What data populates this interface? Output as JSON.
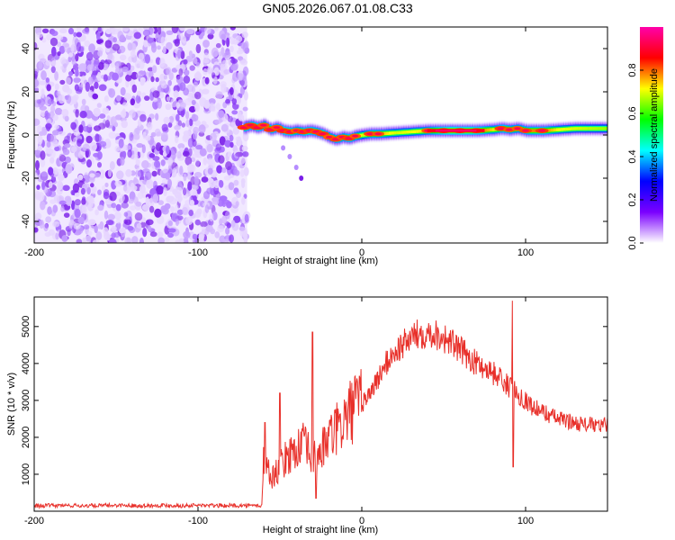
{
  "title": "GN05.2026.067.01.08.C33",
  "chart_data": [
    {
      "type": "heatmap",
      "panel": "spectrogram",
      "xlabel": "Height of straight line (km)",
      "ylabel": "Frequency (Hz)",
      "xlim": [
        -200,
        150
      ],
      "ylim": [
        -50,
        50
      ],
      "x_ticks": [
        -200,
        -100,
        0,
        100
      ],
      "y_ticks": [
        -40,
        -20,
        0,
        20,
        40
      ],
      "noise_region_x": [
        -200,
        -70
      ],
      "ridge": {
        "x": [
          -72,
          -68,
          -64,
          -60,
          -56,
          -52,
          -48,
          -44,
          -40,
          -36,
          -32,
          -28,
          -24,
          -20,
          -16,
          -12,
          -8,
          -4,
          0,
          5,
          10,
          20,
          30,
          40,
          50,
          60,
          70,
          80,
          85,
          90,
          95,
          100,
          110,
          120,
          130,
          140,
          150
        ],
        "y": [
          3.5,
          4.5,
          3.5,
          4.5,
          2.5,
          3.5,
          2.0,
          1.5,
          2.0,
          1.5,
          2.0,
          1.5,
          0.5,
          -1.0,
          -2.0,
          -1.0,
          -1.5,
          -0.5,
          0.0,
          0.5,
          0.5,
          1.0,
          1.5,
          2.0,
          2.0,
          2.0,
          2.0,
          2.5,
          3.0,
          2.5,
          3.0,
          2.0,
          2.0,
          2.5,
          3.0,
          3.0,
          3.0
        ],
        "amplitude": [
          0.85,
          0.85,
          0.9,
          0.75,
          0.85,
          0.75,
          0.9,
          0.85,
          0.7,
          0.85,
          0.85,
          0.8,
          0.85,
          0.7,
          0.8,
          0.75,
          0.85,
          0.7,
          0.55,
          0.8,
          0.75,
          0.55,
          0.6,
          0.7,
          0.95,
          0.95,
          0.9,
          0.65,
          0.85,
          0.75,
          0.7,
          0.8,
          0.85,
          0.6,
          0.55,
          0.5,
          0.45
        ]
      },
      "spur": {
        "x": [
          -48,
          -44,
          -40,
          -37
        ],
        "y": [
          -6,
          -10,
          -15,
          -20
        ]
      },
      "colorbar": {
        "label": "Normalized spectral amplitude",
        "range": [
          0,
          1
        ],
        "ticks": [
          0.0,
          0.2,
          0.4,
          0.6,
          0.8
        ],
        "tick_labels": [
          "0.0",
          "0.2",
          "0.4",
          "0.6",
          "0.8"
        ],
        "colormap": [
          "#ffffff",
          "#7b00ff",
          "#0000ff",
          "#00ffff",
          "#00ff00",
          "#ffff00",
          "#ff0000",
          "#ff00aa"
        ]
      }
    },
    {
      "type": "line",
      "panel": "snr",
      "xlabel": "Height of straight line (km)",
      "ylabel": "SNR (10 * v/v)",
      "xlim": [
        -200,
        150
      ],
      "ylim": [
        0,
        5800
      ],
      "x_ticks": [
        -200,
        -100,
        0,
        100
      ],
      "y_ticks": [
        1000,
        2000,
        3000,
        4000,
        5000
      ],
      "color": "#e8302a",
      "series": [
        {
          "name": "SNR",
          "x": [
            -200,
            -190,
            -180,
            -170,
            -160,
            -150,
            -140,
            -130,
            -120,
            -110,
            -100,
            -90,
            -80,
            -70,
            -61,
            -60,
            -55,
            -50,
            -45,
            -40,
            -35,
            -30,
            -25,
            -20,
            -15,
            -10,
            -5,
            0,
            5,
            10,
            15,
            20,
            25,
            30,
            35,
            40,
            45,
            50,
            55,
            60,
            65,
            70,
            75,
            80,
            85,
            90,
            93,
            95,
            100,
            105,
            110,
            115,
            120,
            125,
            130,
            135,
            140,
            145,
            150
          ],
          "y": [
            150,
            150,
            155,
            150,
            150,
            160,
            155,
            150,
            160,
            150,
            160,
            150,
            155,
            150,
            150,
            1400,
            900,
            1200,
            1500,
            1700,
            1800,
            1400,
            1600,
            2000,
            2200,
            2500,
            2800,
            2900,
            3200,
            3600,
            4000,
            4300,
            4500,
            4700,
            4800,
            4850,
            4800,
            4700,
            4550,
            4350,
            4200,
            4000,
            3900,
            3750,
            3600,
            3350,
            3300,
            3200,
            3000,
            2800,
            2700,
            2600,
            2500,
            2450,
            2400,
            2350,
            2350,
            2300,
            2350
          ]
        }
      ],
      "spikes": [
        {
          "x": -59,
          "y": 2400
        },
        {
          "x": -50,
          "y": 3200
        },
        {
          "x": -30,
          "y": 4850
        },
        {
          "x": -28,
          "y": 350
        },
        {
          "x": 92,
          "y": 5700
        },
        {
          "x": 92.5,
          "y": 1200
        }
      ]
    }
  ]
}
